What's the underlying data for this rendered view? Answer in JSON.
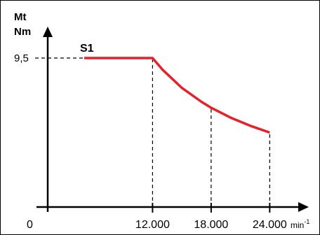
{
  "chart_data": {
    "type": "line",
    "y_unit_lines": [
      "Mt",
      "Nm"
    ],
    "x_unit": "min",
    "x_unit_exp": "-1",
    "origin_label": "0",
    "x_ticks": [
      {
        "value": 12000,
        "label": "12.000"
      },
      {
        "value": 18000,
        "label": "18.000"
      },
      {
        "value": 24000,
        "label": "24.000"
      }
    ],
    "y_ticks": [
      {
        "value": 9.5,
        "label": "9,5"
      }
    ],
    "xlim": [
      -750,
      28000
    ],
    "ylim": [
      0,
      13.2
    ],
    "series": [
      {
        "name": "S1",
        "color": "#e8202a",
        "x": [
          5000,
          12000,
          13000,
          15000,
          17000,
          18000,
          20000,
          22000,
          24000
        ],
        "y": [
          9.5,
          9.5,
          8.77,
          7.6,
          6.71,
          6.33,
          5.7,
          5.18,
          4.75
        ]
      }
    ],
    "guides": [
      {
        "from": "y-axis",
        "to_x": 12000,
        "at_y": 9.5,
        "style": "dashed"
      },
      {
        "at_x": 12000,
        "to_y": 9.5,
        "style": "dashed"
      },
      {
        "at_x": 18000,
        "to_y": 6.33,
        "style": "dashed"
      },
      {
        "at_x": 24000,
        "to_y": 4.75,
        "style": "dashed"
      }
    ],
    "grid": false,
    "legend": "none"
  }
}
